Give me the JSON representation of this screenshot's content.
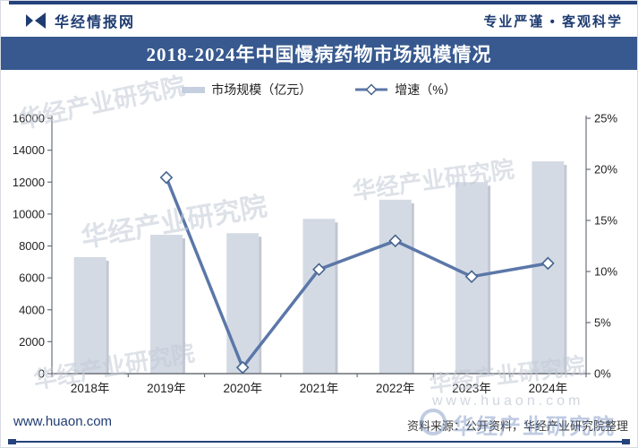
{
  "header": {
    "site_name": "华经情报网",
    "slogan": "专业严谨 • 客观科学"
  },
  "title": "2018-2024年中国慢病药物市场规模情况",
  "legend": {
    "bar_label": "市场规模（亿元）",
    "line_label": "增速（%）"
  },
  "chart_data": {
    "type": "bar",
    "title": "2018-2024年中国慢病药物市场规模情况",
    "categories": [
      "2018年",
      "2019年",
      "2020年",
      "2021年",
      "2022年",
      "2023年",
      "2024年"
    ],
    "series": [
      {
        "name": "市场规模（亿元）",
        "type": "bar",
        "axis": "left",
        "values": [
          7300,
          8700,
          8800,
          9700,
          10900,
          12000,
          13300
        ]
      },
      {
        "name": "增速（%）",
        "type": "line",
        "axis": "right",
        "values": [
          null,
          19.2,
          0.6,
          10.2,
          13.0,
          9.5,
          10.8
        ]
      }
    ],
    "left_axis": {
      "min": 0,
      "max": 16000,
      "interval": 2000,
      "tick_labels": [
        "0",
        "2000",
        "4000",
        "6000",
        "8000",
        "10000",
        "12000",
        "14000",
        "16000"
      ]
    },
    "right_axis": {
      "min": 0,
      "max": 25,
      "interval": 5,
      "tick_labels": [
        "0%",
        "5%",
        "10%",
        "15%",
        "20%",
        "25%"
      ]
    },
    "legend_position": "top",
    "grid": false
  },
  "watermarks": {
    "brand": "华经产业研究院",
    "site": "www.huaon.com"
  },
  "footer": {
    "website": "www.huaon.com",
    "source": "资料来源：公开资料，华经产业研究院整理"
  },
  "colors": {
    "accent": "#24427c",
    "title_bar": "#37598f",
    "bar_fill": "#d4dae4",
    "bar_shadow": "#c2c7d2",
    "line": "#5b77a8",
    "diamond_stroke": "#46648f",
    "axis": "#6a7078",
    "tick_text": "#222222"
  }
}
